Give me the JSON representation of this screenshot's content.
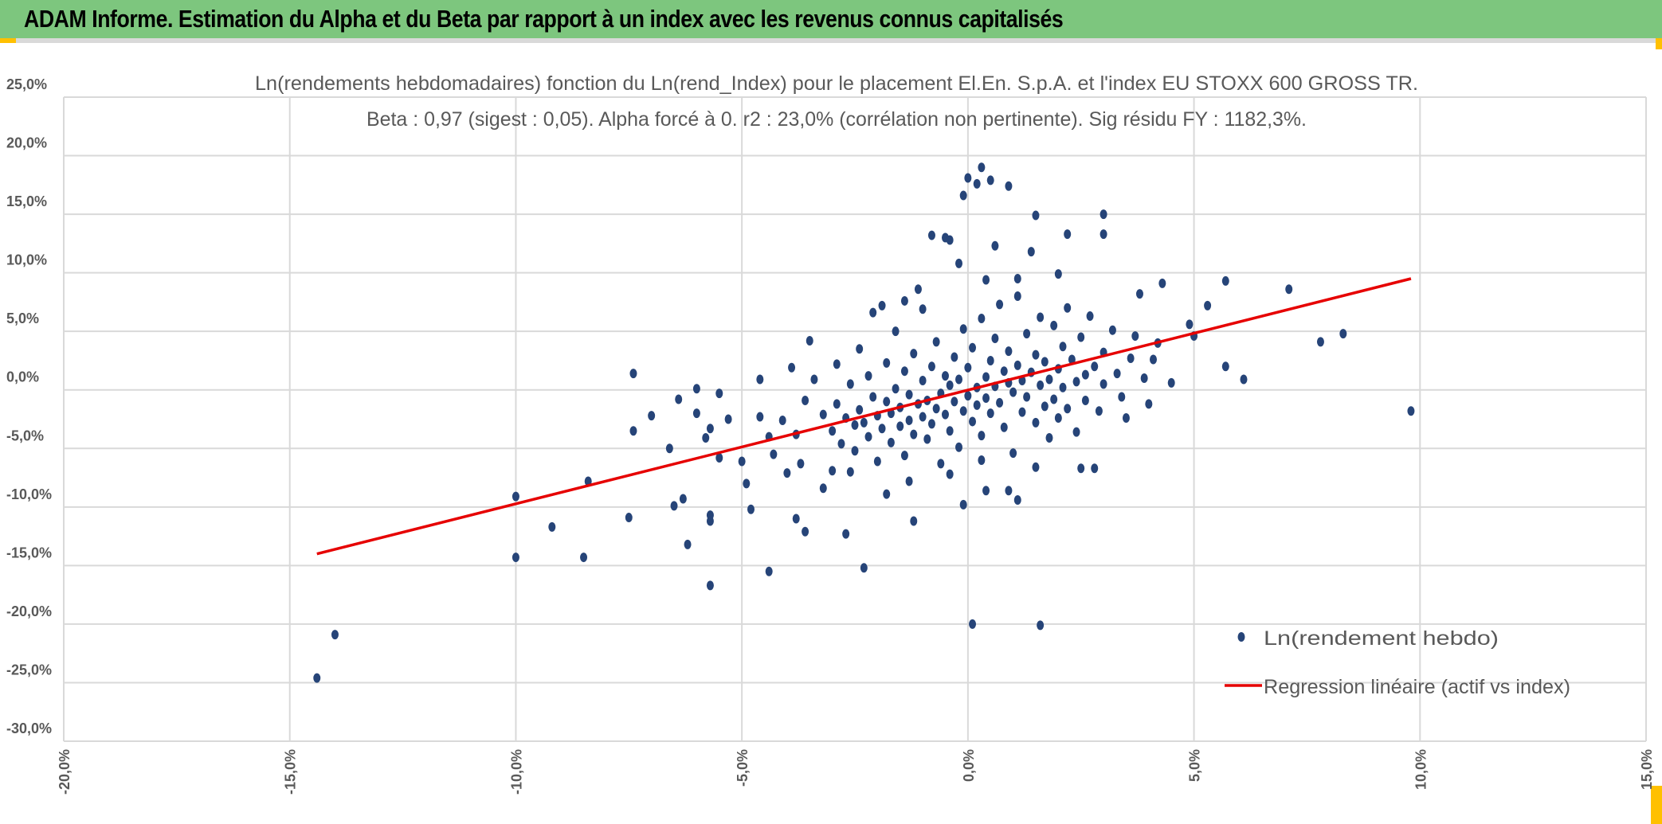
{
  "header": {
    "title": "ADAM Informe. Estimation du Alpha et du Beta par rapport à un index avec les revenus connus capitalisés"
  },
  "colors": {
    "header_bg": "#7dc67e",
    "points": "#264478",
    "regression": "#e60000",
    "grid": "#d9d9d9",
    "accent": "#ffc000"
  },
  "chart_data": {
    "type": "scatter",
    "title": "Ln(rendements hebdomadaires) fonction du Ln(rend_Index) pour le placement El.En. S.p.A. et l'index EU STOXX 600 GROSS TR.",
    "subtitle": "Beta : 0,97 (sigest : 0,05). Alpha forcé à 0. r2 : 23,0% (corrélation non pertinente). Sig résidu FY : 1182,3%.",
    "xlim": [
      -20,
      15
    ],
    "ylim": [
      -30,
      25
    ],
    "x_ticks": [
      "-20,0%",
      "-15,0%",
      "-10,0%",
      "-5,0%",
      "0,0%",
      "5,0%",
      "10,0%",
      "15,0%"
    ],
    "y_ticks": [
      "25,0%",
      "20,0%",
      "15,0%",
      "10,0%",
      "5,0%",
      "0,0%",
      "-5,0%",
      "-10,0%",
      "-15,0%",
      "-20,0%",
      "-25,0%",
      "-30,0%"
    ],
    "grid": true,
    "legend_position": "bottom-right",
    "series": [
      {
        "name": "Ln(rendement hebdo)",
        "kind": "scatter",
        "points": [
          [
            -14.4,
            -24.6
          ],
          [
            -14.0,
            -20.9
          ],
          [
            -10.0,
            -9.1
          ],
          [
            -10.0,
            -14.3
          ],
          [
            -9.2,
            -11.7
          ],
          [
            -8.5,
            -14.3
          ],
          [
            -8.4,
            -7.8
          ],
          [
            -7.5,
            -10.9
          ],
          [
            -7.4,
            1.4
          ],
          [
            -7.4,
            -3.5
          ],
          [
            -7.0,
            -2.2
          ],
          [
            -6.6,
            -5.0
          ],
          [
            -6.5,
            -9.9
          ],
          [
            -6.4,
            -0.8
          ],
          [
            -6.3,
            -9.3
          ],
          [
            -6.2,
            -13.2
          ],
          [
            -6.0,
            -2.0
          ],
          [
            -6.0,
            0.1
          ],
          [
            -5.8,
            -4.1
          ],
          [
            -5.7,
            -3.3
          ],
          [
            -5.7,
            -10.7
          ],
          [
            -5.7,
            -11.2
          ],
          [
            -5.7,
            -16.7
          ],
          [
            -5.5,
            -0.3
          ],
          [
            -5.5,
            -5.8
          ],
          [
            -5.3,
            -2.5
          ],
          [
            -5.0,
            -6.1
          ],
          [
            -4.9,
            -8.0
          ],
          [
            -4.8,
            -10.2
          ],
          [
            -4.6,
            0.9
          ],
          [
            -4.6,
            -2.3
          ],
          [
            -4.4,
            -15.5
          ],
          [
            -4.3,
            -5.5
          ],
          [
            -4.0,
            -7.1
          ],
          [
            -3.9,
            1.9
          ],
          [
            -3.8,
            -11.0
          ],
          [
            -3.7,
            -6.3
          ],
          [
            -3.6,
            -12.1
          ],
          [
            -3.5,
            4.2
          ],
          [
            -3.0,
            -6.9
          ],
          [
            -2.7,
            -12.3
          ],
          [
            -2.3,
            -15.2
          ],
          [
            -2.1,
            6.6
          ],
          [
            -1.9,
            7.2
          ],
          [
            -1.4,
            7.6
          ],
          [
            -1.1,
            8.6
          ],
          [
            -1.2,
            -11.2
          ],
          [
            -0.8,
            13.2
          ],
          [
            -0.5,
            13.0
          ],
          [
            -0.4,
            12.8
          ],
          [
            -0.1,
            16.6
          ],
          [
            0.0,
            18.1
          ],
          [
            0.2,
            17.6
          ],
          [
            0.3,
            19.0
          ],
          [
            0.5,
            17.9
          ],
          [
            0.9,
            17.4
          ],
          [
            1.5,
            14.9
          ],
          [
            2.2,
            13.3
          ],
          [
            3.0,
            15.0
          ],
          [
            3.0,
            13.3
          ],
          [
            0.1,
            -20.0
          ],
          [
            1.6,
            -20.1
          ],
          [
            -0.1,
            -9.8
          ],
          [
            0.4,
            -8.6
          ],
          [
            0.9,
            -8.6
          ],
          [
            1.1,
            -9.4
          ],
          [
            1.5,
            -6.6
          ],
          [
            3.5,
            -2.4
          ],
          [
            4.2,
            4.0
          ],
          [
            4.3,
            9.1
          ],
          [
            5.0,
            4.6
          ],
          [
            5.3,
            7.2
          ],
          [
            5.7,
            9.3
          ],
          [
            5.7,
            2.0
          ],
          [
            6.1,
            0.9
          ],
          [
            7.1,
            8.6
          ],
          [
            7.8,
            4.1
          ],
          [
            8.3,
            4.8
          ],
          [
            9.8,
            -1.8
          ],
          [
            3.8,
            8.2
          ],
          [
            4.9,
            5.6
          ],
          [
            4.5,
            0.6
          ],
          [
            2.5,
            -6.7
          ],
          [
            2.8,
            -6.7
          ],
          [
            -3.2,
            -2.1
          ],
          [
            -3.0,
            -3.5
          ],
          [
            -2.9,
            -1.2
          ],
          [
            -2.8,
            -4.6
          ],
          [
            -2.7,
            -2.4
          ],
          [
            -2.6,
            0.5
          ],
          [
            -2.5,
            -3.0
          ],
          [
            -2.5,
            -5.2
          ],
          [
            -2.4,
            -1.7
          ],
          [
            -2.3,
            -2.8
          ],
          [
            -2.2,
            1.2
          ],
          [
            -2.2,
            -4.0
          ],
          [
            -2.1,
            -0.6
          ],
          [
            -2.0,
            -2.2
          ],
          [
            -2.0,
            -6.1
          ],
          [
            -1.9,
            -3.3
          ],
          [
            -1.8,
            -1.0
          ],
          [
            -1.8,
            2.3
          ],
          [
            -1.7,
            -4.5
          ],
          [
            -1.7,
            -2.0
          ],
          [
            -1.6,
            0.1
          ],
          [
            -1.5,
            -3.1
          ],
          [
            -1.5,
            -1.5
          ],
          [
            -1.4,
            -5.6
          ],
          [
            -1.4,
            1.6
          ],
          [
            -1.3,
            -2.6
          ],
          [
            -1.3,
            -0.4
          ],
          [
            -1.2,
            -3.8
          ],
          [
            -1.2,
            3.1
          ],
          [
            -1.1,
            -1.2
          ],
          [
            -1.0,
            -2.3
          ],
          [
            -1.0,
            0.8
          ],
          [
            -0.9,
            -4.2
          ],
          [
            -0.9,
            -0.9
          ],
          [
            -0.8,
            2.0
          ],
          [
            -0.8,
            -2.9
          ],
          [
            -0.7,
            -1.6
          ],
          [
            -0.7,
            4.1
          ],
          [
            -0.6,
            -0.3
          ],
          [
            -0.6,
            -6.3
          ],
          [
            -0.5,
            1.2
          ],
          [
            -0.5,
            -2.1
          ],
          [
            -0.4,
            -3.5
          ],
          [
            -0.4,
            0.4
          ],
          [
            -0.3,
            2.8
          ],
          [
            -0.3,
            -1.0
          ],
          [
            -0.2,
            -4.9
          ],
          [
            -0.2,
            0.9
          ],
          [
            -0.1,
            -1.8
          ],
          [
            -0.1,
            5.2
          ],
          [
            0.0,
            -0.5
          ],
          [
            0.0,
            1.9
          ],
          [
            0.1,
            -2.7
          ],
          [
            0.1,
            3.6
          ],
          [
            0.2,
            0.2
          ],
          [
            0.2,
            -1.3
          ],
          [
            0.3,
            6.1
          ],
          [
            0.3,
            -3.9
          ],
          [
            0.4,
            1.1
          ],
          [
            0.4,
            -0.7
          ],
          [
            0.5,
            2.5
          ],
          [
            0.5,
            -2.0
          ],
          [
            0.6,
            0.3
          ],
          [
            0.6,
            4.4
          ],
          [
            0.7,
            -1.1
          ],
          [
            0.7,
            7.3
          ],
          [
            0.8,
            1.6
          ],
          [
            0.8,
            -3.2
          ],
          [
            0.9,
            0.6
          ],
          [
            0.9,
            3.3
          ],
          [
            1.0,
            -0.2
          ],
          [
            1.0,
            -5.4
          ],
          [
            1.1,
            2.1
          ],
          [
            1.1,
            9.5
          ],
          [
            1.2,
            0.8
          ],
          [
            1.2,
            -1.9
          ],
          [
            1.3,
            4.8
          ],
          [
            1.3,
            -0.6
          ],
          [
            1.4,
            1.5
          ],
          [
            1.4,
            11.8
          ],
          [
            1.5,
            -2.8
          ],
          [
            1.5,
            3.0
          ],
          [
            1.6,
            0.4
          ],
          [
            1.6,
            6.2
          ],
          [
            1.7,
            -1.4
          ],
          [
            1.7,
            2.4
          ],
          [
            1.8,
            -4.1
          ],
          [
            1.8,
            0.9
          ],
          [
            1.9,
            5.5
          ],
          [
            1.9,
            -0.8
          ],
          [
            2.0,
            1.8
          ],
          [
            2.0,
            -2.4
          ],
          [
            2.1,
            3.7
          ],
          [
            2.1,
            0.2
          ],
          [
            2.2,
            7.0
          ],
          [
            2.2,
            -1.6
          ],
          [
            2.3,
            2.6
          ],
          [
            2.4,
            -3.6
          ],
          [
            2.4,
            0.7
          ],
          [
            2.5,
            4.5
          ],
          [
            2.6,
            1.3
          ],
          [
            2.6,
            -0.9
          ],
          [
            2.7,
            6.3
          ],
          [
            2.8,
            2.0
          ],
          [
            2.9,
            -1.8
          ],
          [
            3.0,
            3.2
          ],
          [
            3.0,
            0.5
          ],
          [
            3.2,
            5.1
          ],
          [
            3.3,
            1.4
          ],
          [
            3.4,
            -0.6
          ],
          [
            3.6,
            2.7
          ],
          [
            3.7,
            4.6
          ],
          [
            3.9,
            1.0
          ],
          [
            4.0,
            -1.2
          ],
          [
            4.1,
            2.6
          ],
          [
            -3.6,
            -0.9
          ],
          [
            -3.8,
            -3.8
          ],
          [
            -4.1,
            -2.6
          ],
          [
            -4.4,
            -4.0
          ],
          [
            -3.4,
            0.9
          ],
          [
            -2.9,
            2.2
          ],
          [
            -2.4,
            3.5
          ],
          [
            -1.6,
            5.0
          ],
          [
            -1.0,
            6.9
          ],
          [
            -0.2,
            10.8
          ],
          [
            0.6,
            12.3
          ],
          [
            0.4,
            9.4
          ],
          [
            1.1,
            8.0
          ],
          [
            2.0,
            9.9
          ],
          [
            -1.3,
            -7.8
          ],
          [
            -0.4,
            -7.2
          ],
          [
            0.3,
            -6.0
          ],
          [
            -1.8,
            -8.9
          ],
          [
            -2.6,
            -7.0
          ],
          [
            -3.2,
            -8.4
          ]
        ]
      },
      {
        "name": "Regression linéaire (actif vs index)",
        "kind": "line",
        "points": [
          [
            -14.4,
            -14.0
          ],
          [
            9.8,
            9.5
          ]
        ]
      }
    ]
  }
}
